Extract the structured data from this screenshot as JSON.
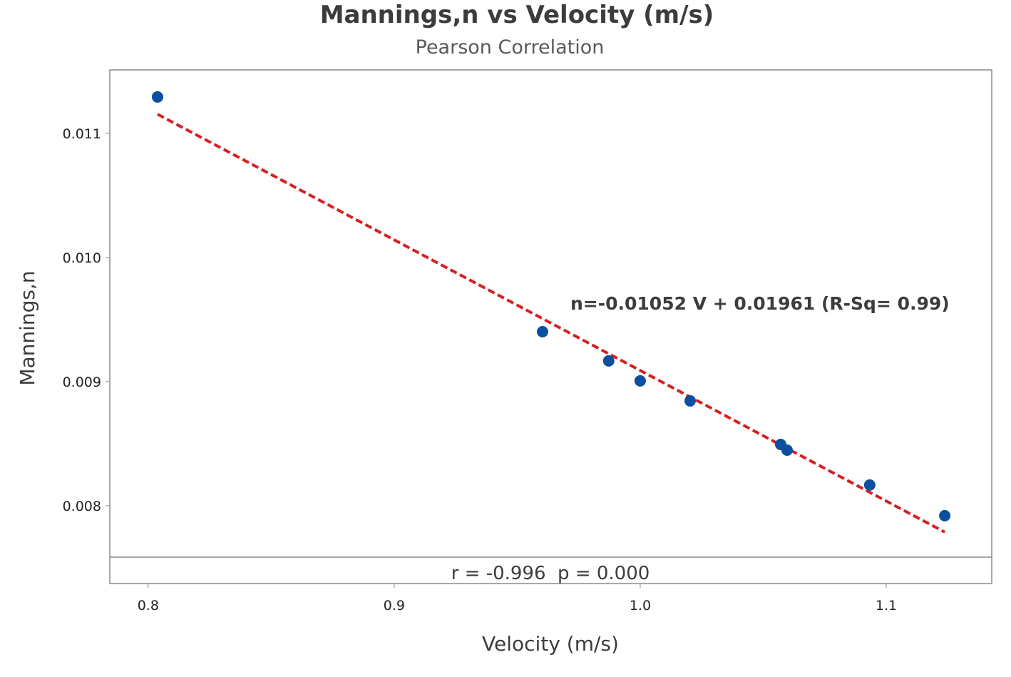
{
  "chart_data": {
    "type": "scatter",
    "title": "Mannings,n vs Velocity (m/s)",
    "subtitle": "Pearson Correlation",
    "xlabel": "Velocity (m/s)",
    "ylabel": "Mannings,n",
    "xlim": [
      0.7844,
      1.1429
    ],
    "ylim": [
      0.007586,
      0.011511
    ],
    "xticks": [
      0.8,
      0.9,
      1.0,
      1.1
    ],
    "xtick_labels": [
      "0.8",
      "0.9",
      "1.0",
      "1.1"
    ],
    "yticks": [
      0.008,
      0.009,
      0.01,
      0.011
    ],
    "ytick_labels": [
      "0.008",
      "0.009",
      "0.010",
      "0.011"
    ],
    "grid": false,
    "points": [
      {
        "x": 0.8038,
        "y": 0.011293
      },
      {
        "x": 0.9603,
        "y": 0.009402
      },
      {
        "x": 0.9872,
        "y": 0.009167
      },
      {
        "x": 1.0,
        "y": 0.009006
      },
      {
        "x": 1.0203,
        "y": 0.008845
      },
      {
        "x": 1.0571,
        "y": 0.008494
      },
      {
        "x": 1.0597,
        "y": 0.008448
      },
      {
        "x": 1.0933,
        "y": 0.008167
      },
      {
        "x": 1.1238,
        "y": 0.00792
      }
    ],
    "fit_line": {
      "slope": -0.01052,
      "intercept": 0.01961,
      "x_range": [
        0.8038,
        1.1238
      ]
    },
    "annotation": "n=-0.01052 V + 0.01961 (R-Sq= 0.99)",
    "stats_text": "r = -0.996  p = 0.000",
    "colors": {
      "points": "#0b4fa0",
      "fit_line": "#d62020",
      "frame": "#8a8a8a"
    }
  }
}
